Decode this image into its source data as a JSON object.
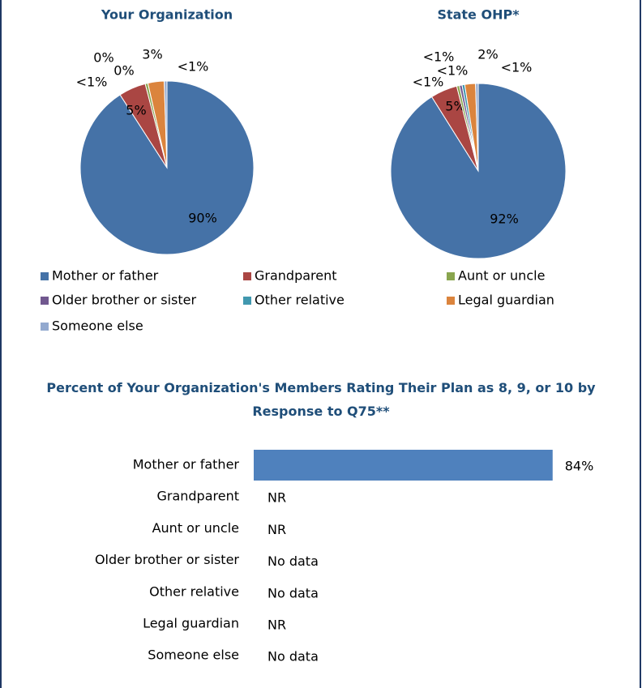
{
  "chart_data": [
    {
      "type": "pie",
      "title": "Your Organization",
      "categories": [
        "Mother or father",
        "Grandparent",
        "Aunt or uncle",
        "Older brother or sister",
        "Other relative",
        "Legal guardian",
        "Someone else"
      ],
      "values": [
        90,
        5,
        0.5,
        0,
        0,
        3,
        0.5
      ],
      "value_labels": [
        "90%",
        "5%",
        "<1%",
        "0%",
        "0%",
        "3%",
        "<1%"
      ],
      "colors": [
        "#4572a7",
        "#aa4643",
        "#89a54e",
        "#71588f",
        "#4198af",
        "#db843d",
        "#93a9cf"
      ]
    },
    {
      "type": "pie",
      "title": "State OHP*",
      "categories": [
        "Mother or father",
        "Grandparent",
        "Aunt or uncle",
        "Older brother or sister",
        "Other relative",
        "Legal guardian",
        "Someone else"
      ],
      "values": [
        92,
        5,
        0.5,
        0.5,
        0.5,
        2,
        0.5
      ],
      "value_labels": [
        "92%",
        "5%",
        "<1%",
        "<1%",
        "<1%",
        "2%",
        "<1%"
      ],
      "colors": [
        "#4572a7",
        "#aa4643",
        "#89a54e",
        "#71588f",
        "#4198af",
        "#db843d",
        "#93a9cf"
      ]
    },
    {
      "type": "hbar",
      "title": "Percent of Your Organization's Members Rating Their Plan as 8, 9, or 10 by Response to Q75**",
      "categories": [
        "Mother or father",
        "Grandparent",
        "Aunt or uncle",
        "Older brother or sister",
        "Other relative",
        "Legal guardian",
        "Someone else"
      ],
      "values": [
        84,
        null,
        null,
        null,
        null,
        null,
        null
      ],
      "value_labels": [
        "84%",
        "NR",
        "NR",
        "No data",
        "No data",
        "NR",
        "No data"
      ],
      "color": "#4f81bd",
      "xlim": [
        0,
        100
      ]
    }
  ]
}
